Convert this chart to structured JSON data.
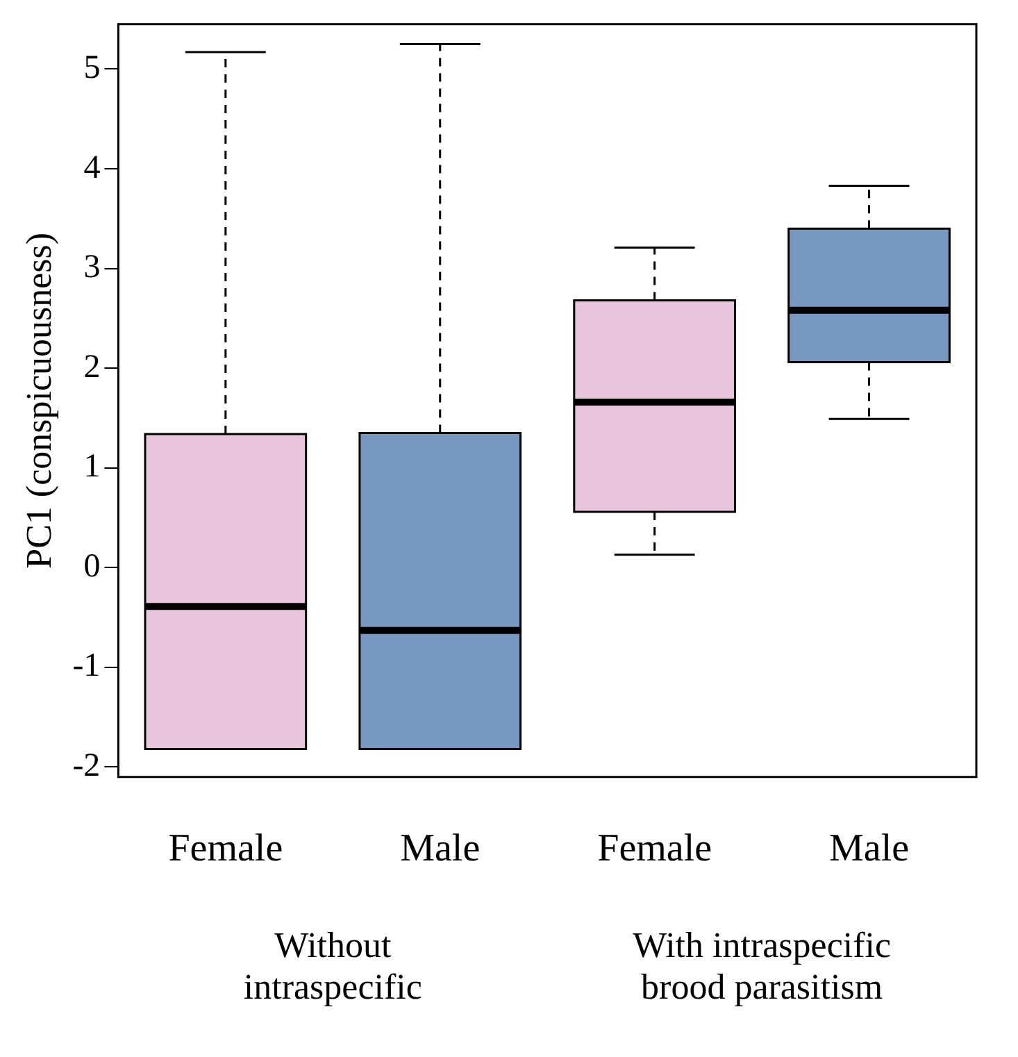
{
  "chart_data": {
    "type": "box",
    "ylabel": "PC1 (conspicuousness)",
    "categories": [
      "Female",
      "Male",
      "Female",
      "Male"
    ],
    "colors": [
      "#eac6de",
      "#7799c1",
      "#eac6de",
      "#7799c1"
    ],
    "boxes": [
      {
        "low": -1.82,
        "q1": -1.82,
        "median": -0.39,
        "q3": 1.34,
        "high": 5.17
      },
      {
        "low": -1.82,
        "q1": -1.82,
        "median": -0.63,
        "q3": 1.35,
        "high": 5.25
      },
      {
        "low": 0.13,
        "q1": 0.56,
        "median": 1.66,
        "q3": 2.68,
        "high": 3.21
      },
      {
        "low": 1.49,
        "q1": 2.06,
        "median": 2.58,
        "q3": 3.4,
        "high": 3.83
      }
    ],
    "ylim": [
      -2.1,
      5.45
    ],
    "yticks": [
      -2,
      -1,
      0,
      1,
      2,
      3,
      4,
      5
    ],
    "grid": false,
    "legend": false,
    "annotations": [
      "Without\nintraspecific",
      "With intraspecific\nbrood parasitism"
    ]
  }
}
